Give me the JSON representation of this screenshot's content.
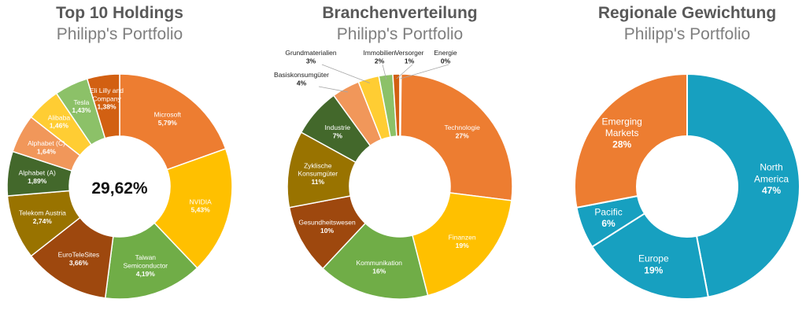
{
  "chart_data": [
    {
      "type": "pie",
      "title": "Top 10 Holdings",
      "subtitle": "Philipp's Portfolio",
      "center_label": "29,62%",
      "categories": [
        "Microsoft",
        "NVIDIA",
        "Taiwan Semiconductor",
        "EuroTeleSites",
        "Telekom Austria",
        "Alphabet (A)",
        "Alphabet (C)",
        "Alibaba",
        "Tesla",
        "Eli Lilly and Company"
      ],
      "values": [
        5.79,
        5.43,
        4.19,
        3.66,
        2.74,
        1.89,
        1.64,
        1.46,
        1.43,
        1.38
      ],
      "value_labels": [
        "5,79%",
        "5,43%",
        "4,19%",
        "3,66%",
        "2,74%",
        "1,89%",
        "1,64%",
        "1,46%",
        "1,43%",
        "1,38%"
      ],
      "colors": [
        "#ED7D31",
        "#FFC000",
        "#70AD47",
        "#9E480E",
        "#997300",
        "#43682B",
        "#F1975A",
        "#FFCD33",
        "#8CC168",
        "#D26012"
      ]
    },
    {
      "type": "pie",
      "title": "Branchenverteilung",
      "subtitle": "Philipp's Portfolio",
      "categories": [
        "Technologie",
        "Finanzen",
        "Kommunikation",
        "Gesundheitswesen",
        "Zyklische Konsumgüter",
        "Industrie",
        "Basiskonsumgüter",
        "Grundmaterialien",
        "Immobilien",
        "Versorger",
        "Energie"
      ],
      "values": [
        27,
        19,
        16,
        10,
        11,
        7,
        4,
        3,
        2,
        1,
        0
      ],
      "value_labels": [
        "27%",
        "19%",
        "16%",
        "10%",
        "11%",
        "7%",
        "4%",
        "3%",
        "2%",
        "1%",
        "0%"
      ],
      "colors": [
        "#ED7D31",
        "#FFC000",
        "#70AD47",
        "#9E480E",
        "#997300",
        "#43682B",
        "#F1975A",
        "#FFCD33",
        "#8CC168",
        "#D26012",
        "#B07D12"
      ]
    },
    {
      "type": "pie",
      "title": "Regionale Gewichtung",
      "subtitle": "Philipp's Portfolio",
      "categories": [
        "North America",
        "Europe",
        "Pacific",
        "Emerging Markets"
      ],
      "values": [
        47,
        19,
        6,
        28
      ],
      "value_labels": [
        "47%",
        "19%",
        "6%",
        "28%"
      ],
      "colors": [
        "#17A0C0",
        "#17A0C0",
        "#17A0C0",
        "#ED7D31"
      ]
    }
  ]
}
